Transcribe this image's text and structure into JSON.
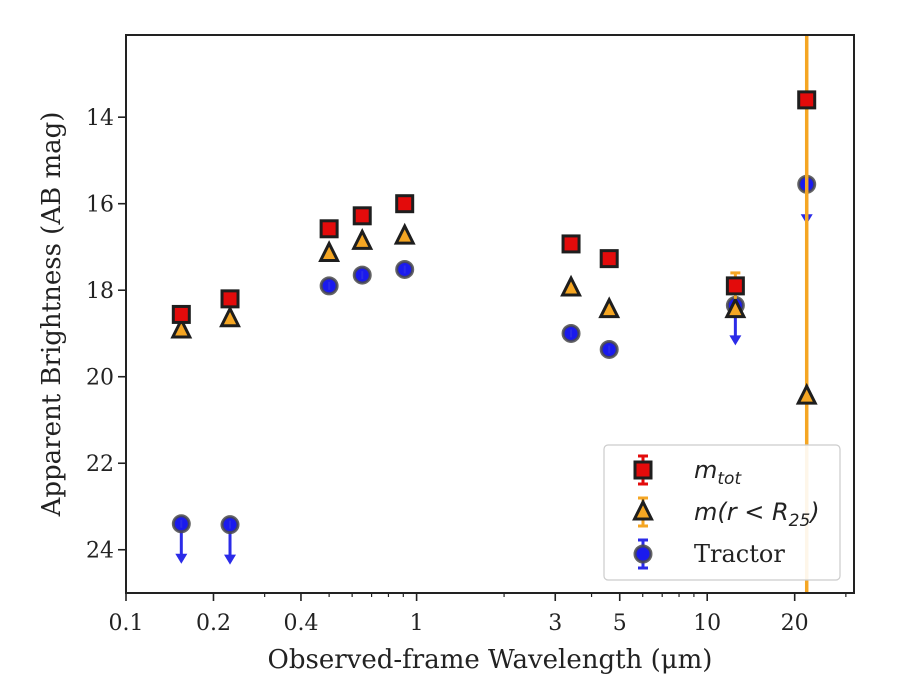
{
  "chart_data": {
    "type": "scatter",
    "xlabel": "Observed-frame Wavelength (μm)",
    "ylabel": "Apparent Brightness (AB mag)",
    "xscale": "log",
    "yaxis_inverted": true,
    "xlim": [
      0.1,
      32
    ],
    "ylim": [
      25,
      12.1
    ],
    "x_ticks": [
      0.1,
      0.2,
      0.4,
      1,
      3,
      5,
      10,
      20
    ],
    "x_tick_labels": [
      "0.1",
      "0.2",
      "0.4",
      "1",
      "3",
      "5",
      "10",
      "20"
    ],
    "y_ticks": [
      14,
      16,
      18,
      20,
      22,
      24
    ],
    "y_tick_labels": [
      "14",
      "16",
      "18",
      "20",
      "22",
      "24"
    ],
    "grid": false,
    "legend_position": "lower-right",
    "series": [
      {
        "name": "m_tot",
        "label_main": "m",
        "label_sub": "tot",
        "marker": "square",
        "color": "#e30b0b",
        "errorbar_color": "#e30b0b",
        "points": [
          {
            "x": 0.155,
            "y": 18.56
          },
          {
            "x": 0.228,
            "y": 18.2
          },
          {
            "x": 0.5,
            "y": 16.58
          },
          {
            "x": 0.65,
            "y": 16.28
          },
          {
            "x": 0.91,
            "y": 16.0
          },
          {
            "x": 3.4,
            "y": 16.93
          },
          {
            "x": 4.6,
            "y": 17.27
          },
          {
            "x": 12.5,
            "y": 17.9,
            "yerr": 0.3
          },
          {
            "x": 22.0,
            "y": 13.6
          }
        ]
      },
      {
        "name": "m(r < R_25)",
        "label_main": "m(r < R",
        "label_sub": "25",
        "label_end": ")",
        "marker": "triangle",
        "color": "#f5a623",
        "errorbar_color": "#f5a623",
        "points": [
          {
            "x": 0.155,
            "y": 18.92
          },
          {
            "x": 0.228,
            "y": 18.66
          },
          {
            "x": 0.5,
            "y": 17.15
          },
          {
            "x": 0.65,
            "y": 16.87
          },
          {
            "x": 0.91,
            "y": 16.75
          },
          {
            "x": 3.4,
            "y": 17.95
          },
          {
            "x": 4.6,
            "y": 18.45
          },
          {
            "x": 12.5,
            "y": 18.45
          },
          {
            "x": 22.0,
            "y": 20.45,
            "full_range_error": true
          }
        ]
      },
      {
        "name": "Tractor",
        "marker": "circle",
        "color": "#1a1aee",
        "errorbar_color": "#2b2be8",
        "points": [
          {
            "x": 0.155,
            "y": 23.4,
            "upper_limit": true
          },
          {
            "x": 0.228,
            "y": 23.42,
            "upper_limit": true
          },
          {
            "x": 0.5,
            "y": 17.9
          },
          {
            "x": 0.65,
            "y": 17.65
          },
          {
            "x": 0.91,
            "y": 17.52
          },
          {
            "x": 3.4,
            "y": 19.0
          },
          {
            "x": 4.6,
            "y": 19.37
          },
          {
            "x": 12.5,
            "y": 18.35,
            "upper_limit": true
          },
          {
            "x": 22.0,
            "y": 15.55,
            "upper_limit": true
          }
        ]
      }
    ]
  }
}
